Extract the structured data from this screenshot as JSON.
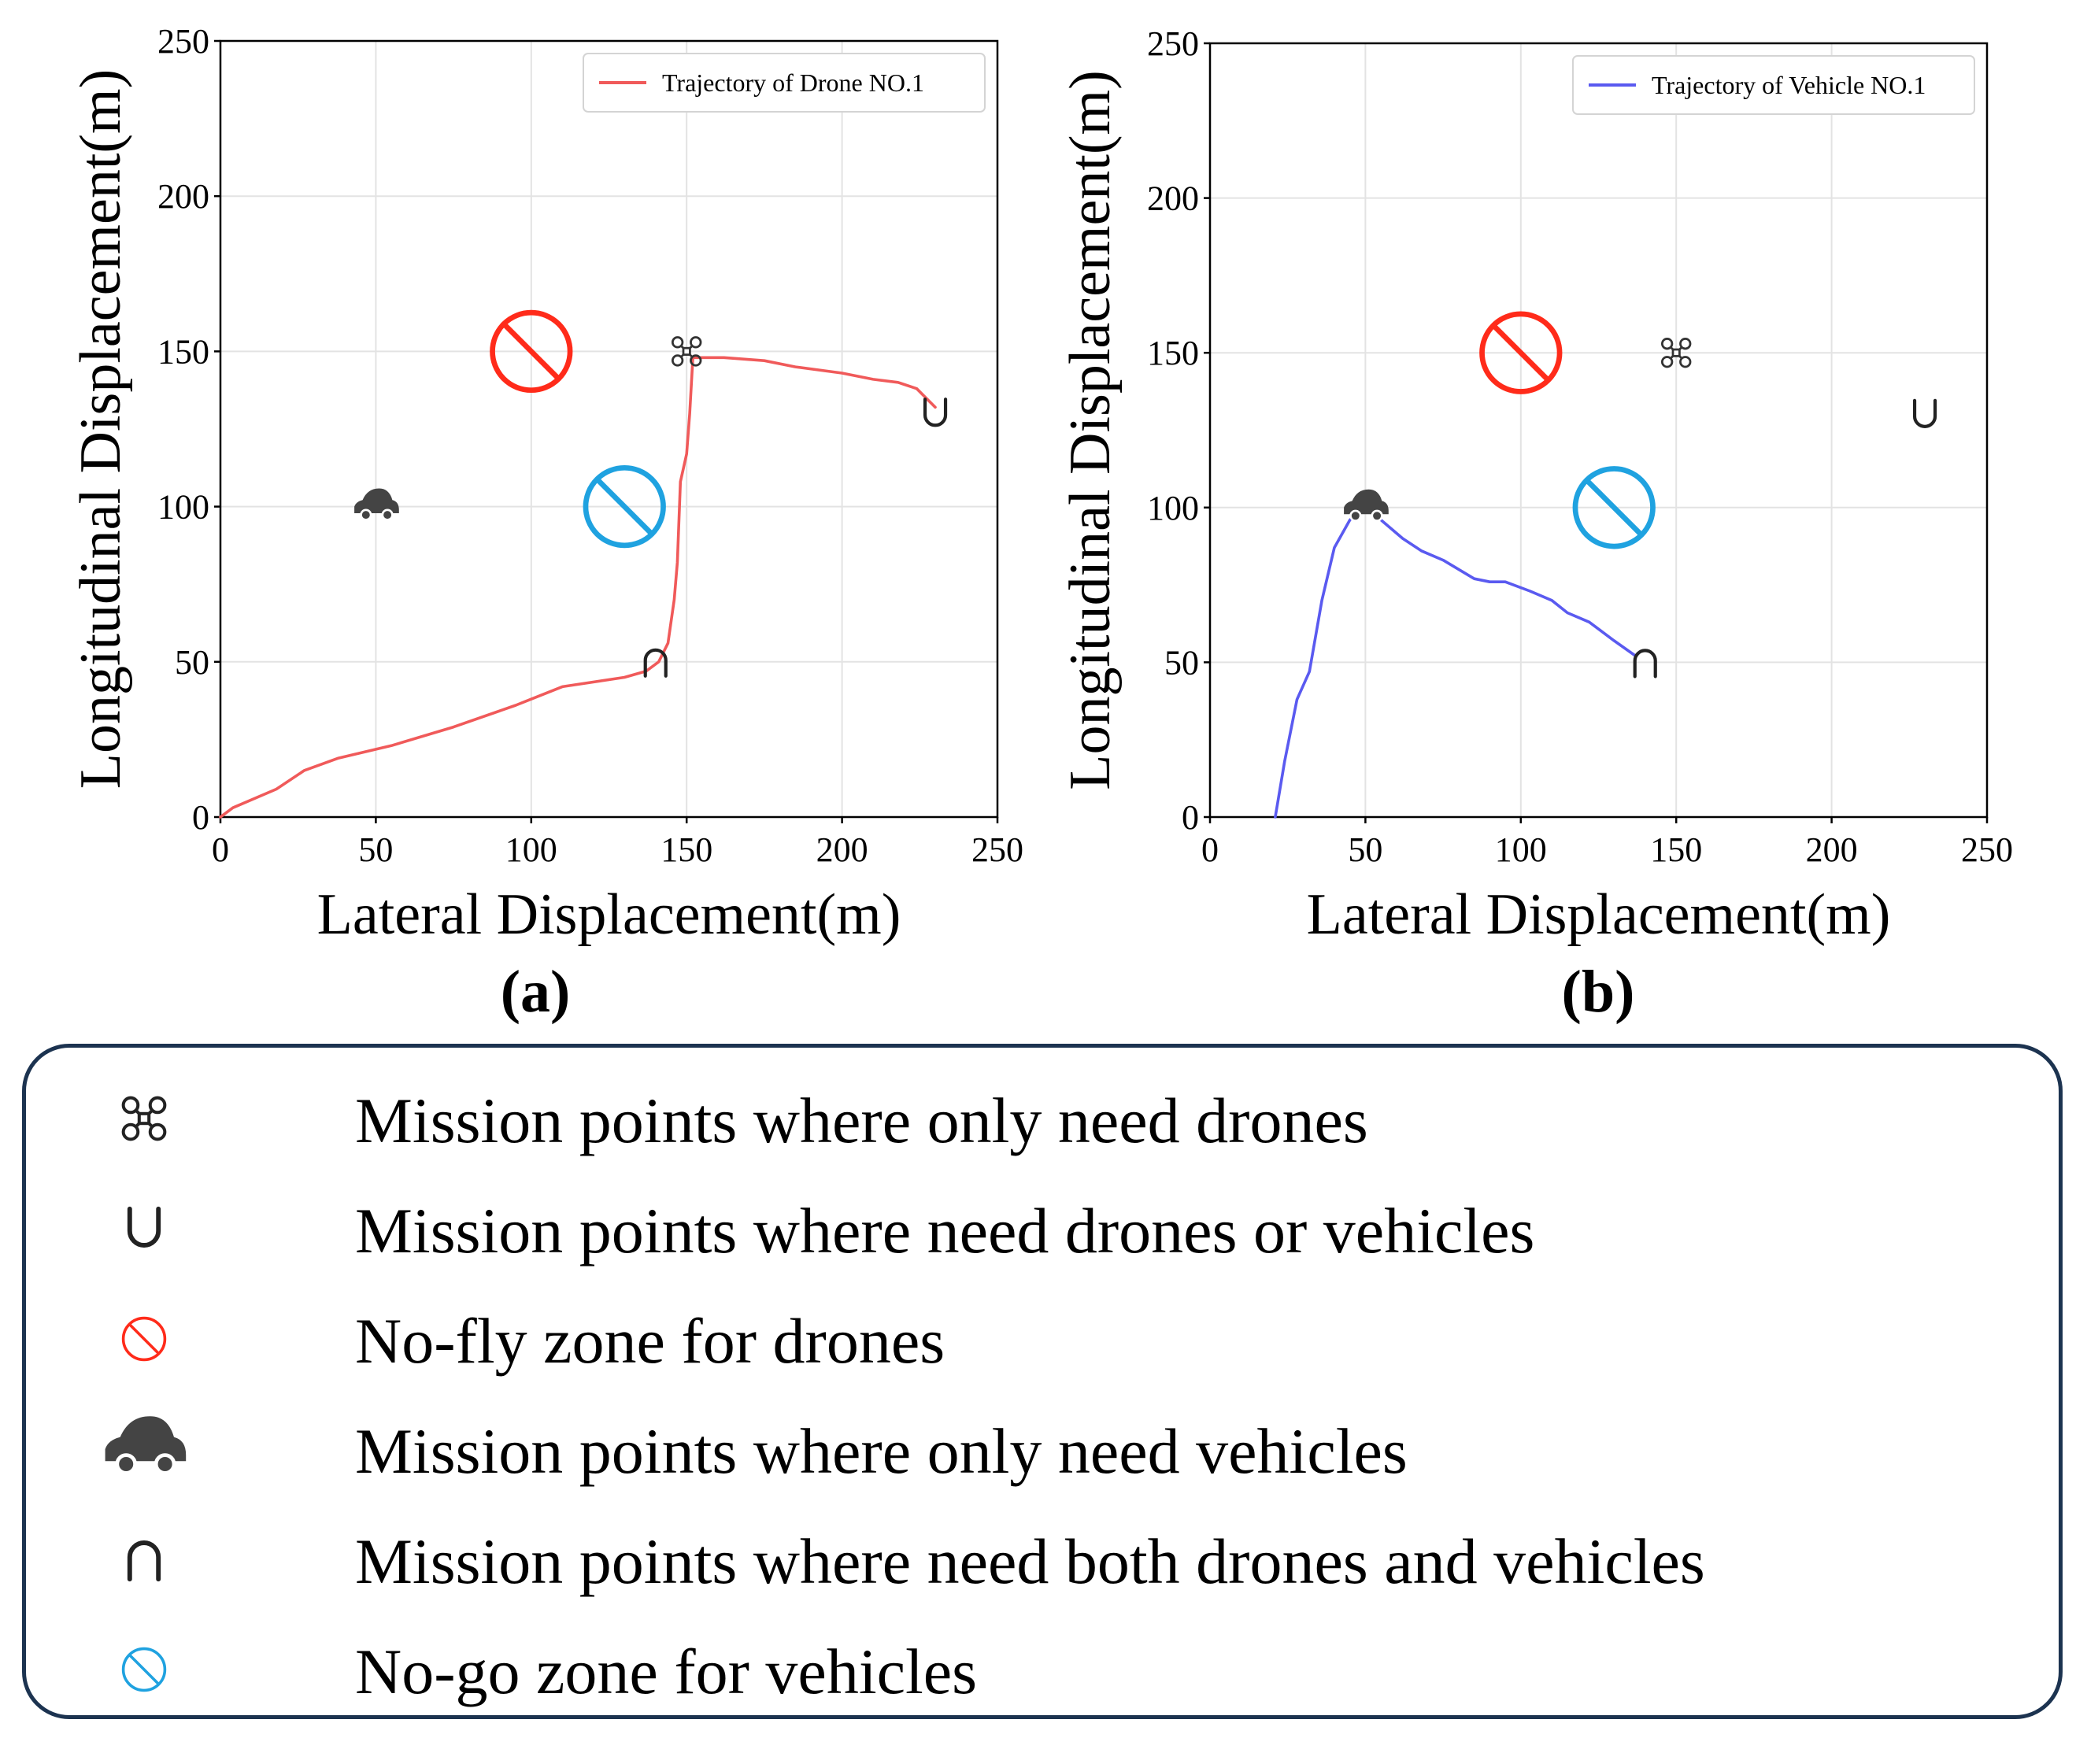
{
  "chart_data": [
    {
      "panel": "(a)",
      "type": "line",
      "xlabel": "Lateral Displacement(m)",
      "ylabel": "Longitudinal Displacement(m)",
      "xlim": [
        0,
        250
      ],
      "ylim": [
        0,
        250
      ],
      "xticks": [
        0,
        50,
        100,
        150,
        200,
        250
      ],
      "yticks": [
        0,
        50,
        100,
        150,
        200,
        250
      ],
      "grid": true,
      "legend_position": "top-right",
      "series": [
        {
          "name": "Trajectory of Drone NO.1",
          "color": "#f05a5a",
          "x": [
            0,
            4,
            18,
            27,
            38,
            55,
            75,
            95,
            110,
            130,
            137,
            141,
            144,
            146,
            147,
            148,
            150,
            151,
            152,
            162,
            175,
            185,
            200,
            210,
            218,
            224,
            230
          ],
          "y": [
            0,
            3,
            9,
            15,
            19,
            23,
            29,
            36,
            42,
            45,
            47,
            50,
            56,
            70,
            82,
            108,
            117,
            130,
            148,
            148,
            147,
            145,
            143,
            141,
            140,
            138,
            132
          ]
        }
      ],
      "markers": {
        "drone_only": {
          "x": 150,
          "y": 150
        },
        "drone_or_vehicle": {
          "x": 230,
          "y": 130
        },
        "no_fly_zone": {
          "x": 100,
          "y": 150
        },
        "vehicle_only": {
          "x": 50,
          "y": 100
        },
        "both": {
          "x": 140,
          "y": 50
        },
        "no_go_zone": {
          "x": 130,
          "y": 100
        }
      }
    },
    {
      "panel": "(b)",
      "type": "line",
      "xlabel": "Lateral Displacement(m)",
      "ylabel": "Longitudinal Displacement(m)",
      "xlim": [
        0,
        250
      ],
      "ylim": [
        0,
        250
      ],
      "xticks": [
        0,
        50,
        100,
        150,
        200,
        250
      ],
      "yticks": [
        0,
        50,
        100,
        150,
        200,
        250
      ],
      "grid": true,
      "legend_position": "top-right",
      "series": [
        {
          "name": "Trajectory of Vehicle NO.1",
          "color": "#5a5af0",
          "x": [
            21,
            24,
            28,
            32,
            36,
            40,
            45,
            50,
            55,
            62,
            68,
            75,
            85,
            90,
            95,
            103,
            110,
            115,
            122,
            130,
            137
          ],
          "y": [
            0,
            18,
            38,
            47,
            70,
            87,
            96,
            100,
            96,
            90,
            86,
            83,
            77,
            76,
            76,
            73,
            70,
            66,
            63,
            57,
            52
          ]
        }
      ],
      "markers": {
        "drone_only": {
          "x": 150,
          "y": 150
        },
        "drone_or_vehicle": {
          "x": 230,
          "y": 130
        },
        "no_fly_zone": {
          "x": 100,
          "y": 150
        },
        "vehicle_only": {
          "x": 50,
          "y": 100
        },
        "both": {
          "x": 140,
          "y": 50
        },
        "no_go_zone": {
          "x": 130,
          "y": 100
        }
      }
    }
  ],
  "colors": {
    "no_fly": "#ff2b1a",
    "no_go": "#1fa2e0",
    "icon": "#444444",
    "legend_border": "#1c3350",
    "axis": "#000000",
    "grid": "#e3e3e3"
  },
  "legend": {
    "items": [
      {
        "icon": "drone-icon",
        "label": "Mission points where only need drones"
      },
      {
        "icon": "cup-icon",
        "label": "Mission points where need drones or vehicles"
      },
      {
        "icon": "no-fly-icon",
        "label": "No-fly zone for drones"
      },
      {
        "icon": "car-icon",
        "label": "Mission points where only need vehicles"
      },
      {
        "icon": "cap-icon",
        "label": "Mission points where need both drones and vehicles"
      },
      {
        "icon": "no-go-icon",
        "label": "No-go zone for vehicles"
      }
    ]
  }
}
